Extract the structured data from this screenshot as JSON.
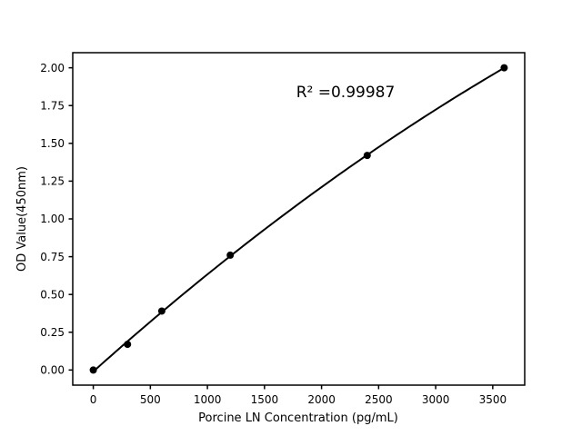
{
  "figure": {
    "background": "#ffffff"
  },
  "chart_data": {
    "type": "scatter",
    "x": [
      0,
      300,
      600,
      1200,
      2400,
      3600
    ],
    "y": [
      0.0,
      0.17,
      0.39,
      0.76,
      1.42,
      2.0
    ],
    "fit": "quadratic",
    "annotation": "R² =0.99987",
    "xlabel": "Porcine LN Concentration (pg/mL)",
    "ylabel": "OD Value(450nm)",
    "xticks": [
      0,
      500,
      1000,
      1500,
      2000,
      2500,
      3000,
      3500
    ],
    "yticks": [
      0.0,
      0.25,
      0.5,
      0.75,
      1.0,
      1.25,
      1.5,
      1.75,
      2.0
    ],
    "ytick_labels": [
      "0.00",
      "0.25",
      "0.50",
      "0.75",
      "1.00",
      "1.25",
      "1.50",
      "1.75",
      "2.00"
    ],
    "xlim": [
      -180,
      3780
    ],
    "ylim": [
      -0.1,
      2.1
    ],
    "grid": false,
    "legend": null,
    "colors": {
      "line": "#000000",
      "marker": "#000000",
      "axis": "#000000",
      "text": "#000000",
      "background": "#ffffff"
    }
  }
}
